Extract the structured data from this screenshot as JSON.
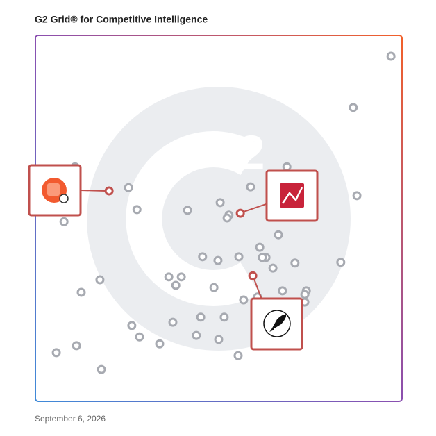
{
  "chart_data": {
    "type": "scatter",
    "title": "G2 Grid® for Competitive Intelligence",
    "date": "September 6, 2026",
    "xlim": [
      0,
      100
    ],
    "ylim": [
      0,
      100
    ],
    "series": [
      {
        "color": "#a7aab1",
        "x": [
          97.0,
          86.7,
          87.7,
          83.3,
          68.6,
          58.7,
          25.4,
          27.7,
          41.5,
          50.4,
          52.8,
          52.3,
          10.8,
          7.8,
          66.3,
          61.2,
          62.9,
          61.9,
          64.8,
          70.8,
          55.5,
          45.6,
          49.8,
          36.4,
          39.8,
          38.3,
          17.6,
          12.5,
          48.7,
          67.4,
          73.9,
          73.5,
          73.5,
          60.6,
          56.8,
          51.5,
          45.1,
          37.5,
          26.3,
          28.4,
          33.9,
          43.9,
          50.0,
          11.2,
          5.7,
          18.0,
          55.3
        ],
        "values": [
          94.3,
          80.3,
          56.2,
          38.0,
          64.1,
          58.6,
          58.4,
          52.4,
          52.2,
          54.3,
          50.9,
          50.1,
          64.1,
          49.1,
          45.5,
          42.1,
          39.3,
          39.3,
          36.4,
          37.8,
          39.5,
          39.5,
          38.5,
          34.0,
          34.0,
          31.7,
          33.2,
          29.8,
          31.1,
          30.2,
          30.2,
          29.2,
          27.1,
          28.5,
          27.7,
          23.0,
          23.0,
          21.6,
          20.7,
          17.6,
          15.7,
          18.0,
          16.9,
          15.2,
          13.3,
          8.7,
          12.5
        ]
      },
      {
        "color": "#c0504d",
        "x": [
          20.1,
          55.9,
          59.3
        ],
        "values": [
          57.5,
          51.4,
          34.3
        ]
      }
    ]
  }
}
